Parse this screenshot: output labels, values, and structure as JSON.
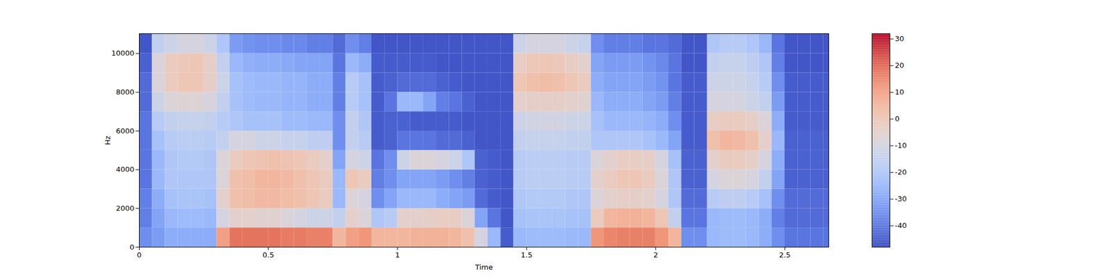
{
  "chart_data": {
    "type": "heatmap",
    "x_label": "Time",
    "y_label": "Hz",
    "xlim": [
      0,
      2.67
    ],
    "ylim": [
      0,
      11025
    ],
    "xticks": [
      0,
      0.5,
      1,
      1.5,
      2,
      2.5
    ],
    "yticks": [
      0,
      2000,
      4000,
      6000,
      8000,
      10000
    ],
    "time_bins": [
      0,
      0.05,
      0.1,
      0.15,
      0.2,
      0.25,
      0.3,
      0.35,
      0.4,
      0.45,
      0.5,
      0.55,
      0.6,
      0.65,
      0.7,
      0.75,
      0.8,
      0.85,
      0.9,
      0.95,
      1,
      1.05,
      1.1,
      1.15,
      1.2,
      1.25,
      1.3,
      1.35,
      1.4,
      1.45,
      1.5,
      1.55,
      1.6,
      1.65,
      1.7,
      1.75,
      1.8,
      1.85,
      1.9,
      1.95,
      2,
      2.05,
      2.1,
      2.15,
      2.2,
      2.25,
      2.3,
      2.35,
      2.4,
      2.45,
      2.5,
      2.55,
      2.6,
      2.65,
      2.67
    ],
    "freq_bins": [
      0,
      1000,
      2000,
      3000,
      4000,
      5000,
      6000,
      7000,
      8000,
      9000,
      10000,
      11025
    ],
    "cells": [
      [
        -35,
        -38,
        -38,
        -40,
        -40,
        -40,
        -40,
        -42,
        -42,
        -44,
        -46
      ],
      [
        -32,
        -30,
        -28,
        -25,
        -25,
        -22,
        -18,
        -12,
        -8,
        -8,
        -15
      ],
      [
        -28,
        -25,
        -22,
        -20,
        -20,
        -18,
        -15,
        -8,
        -2,
        -2,
        -12
      ],
      [
        -28,
        -24,
        -21,
        -20,
        -19,
        -17,
        -14,
        -7,
        0,
        -1,
        -10
      ],
      [
        -28,
        -24,
        -21,
        -20,
        -19,
        -17,
        -14,
        -7,
        0,
        0,
        -10
      ],
      [
        -28,
        -25,
        -22,
        -20,
        -20,
        -18,
        -15,
        -9,
        -4,
        -4,
        -12
      ],
      [
        10,
        -10,
        -5,
        -8,
        -8,
        -15,
        -18,
        -15,
        -12,
        -15,
        -20
      ],
      [
        18,
        -5,
        2,
        2,
        -2,
        -10,
        -20,
        -22,
        -22,
        -25,
        -32
      ],
      [
        18,
        -5,
        3,
        3,
        0,
        -10,
        -22,
        -24,
        -24,
        -27,
        -34
      ],
      [
        18,
        -6,
        4,
        5,
        1,
        -12,
        -22,
        -25,
        -25,
        -28,
        -35
      ],
      [
        18,
        -6,
        4,
        5,
        2,
        -12,
        -22,
        -25,
        -25,
        -28,
        -35
      ],
      [
        17,
        -8,
        3,
        4,
        1,
        -14,
        -24,
        -26,
        -26,
        -29,
        -36
      ],
      [
        17,
        -10,
        2,
        2,
        0,
        -14,
        -24,
        -26,
        -26,
        -30,
        -36
      ],
      [
        16,
        -12,
        0,
        0,
        -2,
        -16,
        -25,
        -28,
        -28,
        -30,
        -38
      ],
      [
        16,
        -12,
        -2,
        -2,
        -5,
        -16,
        -25,
        -28,
        -28,
        -30,
        -38
      ],
      [
        5,
        -15,
        -25,
        -25,
        -30,
        -35,
        -35,
        -38,
        -38,
        -40,
        -42
      ],
      [
        10,
        -5,
        -8,
        0,
        -10,
        -15,
        -15,
        -18,
        -18,
        -25,
        -35
      ],
      [
        12,
        -8,
        -10,
        -2,
        -12,
        -18,
        -20,
        -22,
        -22,
        -28,
        -38
      ],
      [
        5,
        -20,
        -35,
        -38,
        -40,
        -45,
        -45,
        -45,
        -45,
        -45,
        -46
      ],
      [
        5,
        -18,
        -30,
        -35,
        -35,
        -44,
        -44,
        -40,
        -44,
        -45,
        -46
      ],
      [
        5,
        -5,
        -25,
        -30,
        -12,
        -40,
        -44,
        -25,
        -42,
        -45,
        -46
      ],
      [
        6,
        -5,
        -25,
        -30,
        -8,
        -40,
        -45,
        -25,
        -42,
        -45,
        -46
      ],
      [
        6,
        -4,
        -25,
        -30,
        -8,
        -40,
        -45,
        -30,
        -42,
        -45,
        -46
      ],
      [
        6,
        -3,
        -28,
        -32,
        -10,
        -42,
        -45,
        -38,
        -44,
        -46,
        -46
      ],
      [
        5,
        -3,
        -30,
        -35,
        -12,
        -42,
        -45,
        -40,
        -45,
        -46,
        -46
      ],
      [
        2,
        -8,
        -32,
        -38,
        -20,
        -44,
        -46,
        -44,
        -46,
        -46,
        -46
      ],
      [
        -10,
        -30,
        -42,
        -44,
        -44,
        -46,
        -46,
        -46,
        -46,
        -46,
        -46
      ],
      [
        -25,
        -40,
        -45,
        -45,
        -45,
        -46,
        -46,
        -46,
        -46,
        -46,
        -46
      ],
      [
        -45,
        -46,
        -46,
        -46,
        -46,
        -46,
        -46,
        -46,
        -46,
        -46,
        -46
      ],
      [
        -25,
        -22,
        -20,
        -18,
        -18,
        -15,
        -12,
        -5,
        0,
        -3,
        -12
      ],
      [
        -24,
        -21,
        -19,
        -17,
        -17,
        -14,
        -11,
        -4,
        2,
        -1,
        -10
      ],
      [
        -24,
        -21,
        -19,
        -17,
        -17,
        -14,
        -11,
        -4,
        3,
        0,
        -10
      ],
      [
        -24,
        -21,
        -19,
        -17,
        -17,
        -14,
        -11,
        -4,
        2,
        -1,
        -10
      ],
      [
        -25,
        -22,
        -20,
        -18,
        -18,
        -15,
        -12,
        -5,
        0,
        -3,
        -12
      ],
      [
        -25,
        -22,
        -20,
        -18,
        -18,
        -15,
        -12,
        -6,
        -2,
        -5,
        -14
      ],
      [
        12,
        -2,
        -8,
        -5,
        -8,
        -20,
        -22,
        -25,
        -28,
        -30,
        -35
      ],
      [
        15,
        5,
        -5,
        -2,
        -5,
        -20,
        -25,
        -28,
        -30,
        -32,
        -38
      ],
      [
        16,
        6,
        -4,
        0,
        -3,
        -20,
        -25,
        -28,
        -30,
        -32,
        -38
      ],
      [
        16,
        6,
        -4,
        0,
        -3,
        -20,
        -25,
        -28,
        -30,
        -32,
        -38
      ],
      [
        16,
        5,
        -5,
        -2,
        -4,
        -22,
        -26,
        -30,
        -32,
        -34,
        -40
      ],
      [
        12,
        0,
        -10,
        -8,
        -10,
        -25,
        -28,
        -32,
        -34,
        -36,
        -40
      ],
      [
        5,
        -15,
        -20,
        -20,
        -22,
        -30,
        -35,
        -38,
        -40,
        -40,
        -42
      ],
      [
        -35,
        -40,
        -42,
        -44,
        -44,
        -45,
        -45,
        -45,
        -45,
        -46,
        -46
      ],
      [
        -35,
        -40,
        -42,
        -44,
        -44,
        -45,
        -45,
        -45,
        -45,
        -46,
        -46
      ],
      [
        -25,
        -25,
        -18,
        -10,
        -5,
        2,
        -3,
        -10,
        -12,
        -15,
        -20
      ],
      [
        -24,
        -24,
        -16,
        -8,
        -2,
        5,
        -2,
        -10,
        -12,
        -14,
        -18
      ],
      [
        -24,
        -24,
        -16,
        -8,
        -2,
        4,
        -2,
        -10,
        -12,
        -14,
        -18
      ],
      [
        -25,
        -25,
        -18,
        -10,
        -4,
        2,
        -4,
        -12,
        -14,
        -16,
        -20
      ],
      [
        -28,
        -28,
        -22,
        -15,
        -10,
        -5,
        -8,
        -15,
        -18,
        -20,
        -25
      ],
      [
        -35,
        -38,
        -35,
        -30,
        -28,
        -25,
        -28,
        -32,
        -35,
        -38,
        -40
      ],
      [
        -40,
        -42,
        -42,
        -44,
        -44,
        -44,
        -45,
        -45,
        -45,
        -46,
        -46
      ],
      [
        -40,
        -42,
        -42,
        -44,
        -44,
        -44,
        -45,
        -45,
        -45,
        -46,
        -46
      ],
      [
        -40,
        -42,
        -42,
        -44,
        -44,
        -44,
        -45,
        -45,
        -45,
        -46,
        -46
      ],
      [
        -40,
        -42,
        -42,
        -44,
        -44,
        -44,
        -45,
        -45,
        -45,
        -46,
        -46
      ]
    ],
    "colorbar": {
      "range": [
        -48,
        32
      ],
      "ticks": [
        -40,
        -30,
        -20,
        -10,
        0,
        10,
        20,
        30
      ]
    }
  }
}
